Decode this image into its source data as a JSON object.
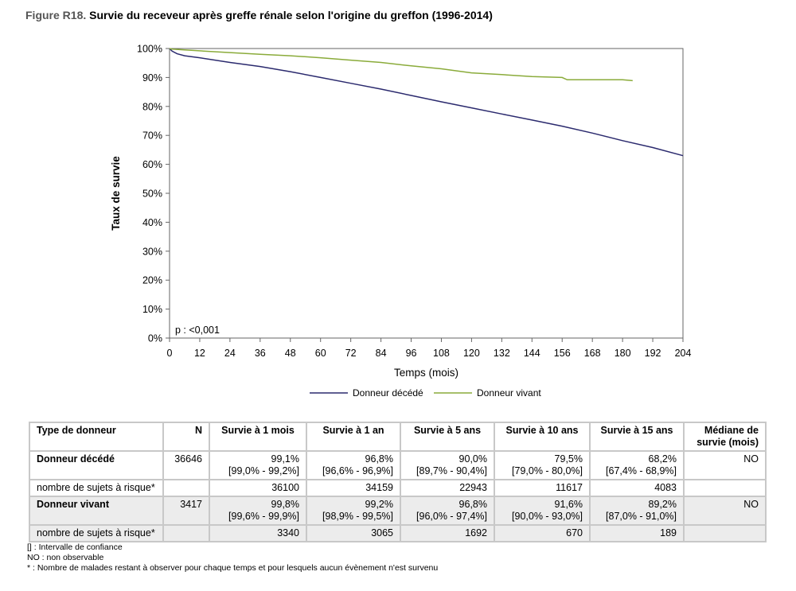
{
  "figure": {
    "label": "Figure R18.",
    "title": "Survie du receveur après greffe rénale selon l'origine du greffon (1996-2014)"
  },
  "chart_data": {
    "type": "line",
    "xlabel": "Temps (mois)",
    "ylabel": "Taux de survie",
    "xlim": [
      0,
      204
    ],
    "ylim": [
      0,
      100
    ],
    "xticks": [
      0,
      12,
      24,
      36,
      48,
      60,
      72,
      84,
      96,
      108,
      120,
      132,
      144,
      156,
      168,
      180,
      192,
      204
    ],
    "yticks": [
      "0%",
      "10%",
      "20%",
      "30%",
      "40%",
      "50%",
      "60%",
      "70%",
      "80%",
      "90%",
      "100%"
    ],
    "annotation": "p : <0,001",
    "legend_position": "bottom",
    "grid": false,
    "series": [
      {
        "name": "Donneur décédé",
        "color": "#2b2a6e",
        "x": [
          0,
          1,
          3,
          6,
          12,
          24,
          36,
          48,
          60,
          72,
          84,
          96,
          108,
          120,
          132,
          144,
          156,
          168,
          180,
          192,
          204
        ],
        "y": [
          100,
          99.1,
          98.2,
          97.5,
          96.8,
          95.2,
          93.8,
          92.0,
          90.0,
          88.0,
          86.0,
          83.8,
          81.6,
          79.5,
          77.4,
          75.3,
          73.2,
          70.8,
          68.2,
          65.8,
          63.0
        ]
      },
      {
        "name": "Donneur vivant",
        "color": "#8aab3a",
        "x": [
          0,
          1,
          6,
          12,
          24,
          36,
          48,
          60,
          72,
          84,
          96,
          108,
          120,
          132,
          144,
          156,
          158,
          168,
          180,
          184
        ],
        "y": [
          100,
          99.8,
          99.5,
          99.2,
          98.6,
          98.0,
          97.5,
          96.8,
          96.0,
          95.2,
          94.0,
          93.0,
          91.6,
          91.0,
          90.3,
          90.0,
          89.2,
          89.2,
          89.2,
          88.9
        ]
      }
    ]
  },
  "table": {
    "headers": [
      "Type de donneur",
      "N",
      "Survie à 1 mois",
      "Survie à 1 an",
      "Survie à 5 ans",
      "Survie à 10 ans",
      "Survie à 15 ans",
      "Médiane de survie (mois)"
    ],
    "groups": [
      {
        "name": "Donneur décédé",
        "n": "36646",
        "values": [
          "99,1%",
          "96,8%",
          "90,0%",
          "79,5%",
          "68,2%"
        ],
        "ci": [
          "[99,0% - 99,2%]",
          "[96,6% - 96,9%]",
          "[89,7% - 90,4%]",
          "[79,0% - 80,0%]",
          "[67,4% - 68,9%]"
        ],
        "median": "NO",
        "risk_label": "nombre de sujets à risque*",
        "risk": [
          "36100",
          "34159",
          "22943",
          "11617",
          "4083"
        ]
      },
      {
        "name": "Donneur vivant",
        "n": "3417",
        "values": [
          "99,8%",
          "99,2%",
          "96,8%",
          "91,6%",
          "89,2%"
        ],
        "ci": [
          "[99,6% - 99,9%]",
          "[98,9% - 99,5%]",
          "[96,0% - 97,4%]",
          "[90,0% - 93,0%]",
          "[87,0% - 91,0%]"
        ],
        "median": "NO",
        "risk_label": "nombre de sujets à risque*",
        "risk": [
          "3340",
          "3065",
          "1692",
          "670",
          "189"
        ]
      }
    ]
  },
  "notes": [
    "[] : Intervalle de confiance",
    "NO : non observable",
    "* : Nombre de malades restant à observer pour chaque temps et pour lesquels aucun évènement n'est survenu"
  ]
}
